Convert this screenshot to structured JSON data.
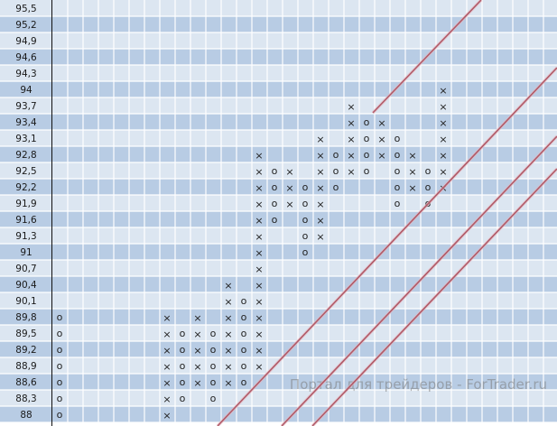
{
  "chart_data": {
    "type": "point-and-figure",
    "price_labels": [
      "95,5",
      "95,2",
      "94,9",
      "94,6",
      "94,3",
      "94",
      "93,7",
      "93,4",
      "93,1",
      "92,8",
      "92,5",
      "92,2",
      "91,9",
      "91,6",
      "91,3",
      "91",
      "90,7",
      "90,4",
      "90,1",
      "89,8",
      "89,5",
      "89,2",
      "88,9",
      "88,6",
      "88,3",
      "88"
    ],
    "box_size": 0.3,
    "columns": [
      {
        "col": 0,
        "mark": "O",
        "high": 89.8,
        "low": 88.0
      },
      {
        "col": 7,
        "mark": "X",
        "high": 89.8,
        "low": 88.0
      },
      {
        "col": 8,
        "mark": "O",
        "high": 89.5,
        "low": 88.3
      },
      {
        "col": 9,
        "mark": "X",
        "high": 89.8,
        "low": 88.6
      },
      {
        "col": 10,
        "mark": "O",
        "high": 89.5,
        "low": 88.3
      },
      {
        "col": 11,
        "mark": "X",
        "high": 90.4,
        "low": 88.6
      },
      {
        "col": 12,
        "mark": "O",
        "high": 90.1,
        "low": 88.6
      },
      {
        "col": 13,
        "mark": "X",
        "high": 92.8,
        "low": 88.9
      },
      {
        "col": 14,
        "mark": "O",
        "high": 92.5,
        "low": 91.6
      },
      {
        "col": 15,
        "mark": "X",
        "high": 92.5,
        "low": 91.9
      },
      {
        "col": 16,
        "mark": "O",
        "high": 92.2,
        "low": 91.0
      },
      {
        "col": 17,
        "mark": "X",
        "high": 93.1,
        "low": 91.3
      },
      {
        "col": 18,
        "mark": "O",
        "high": 92.8,
        "low": 92.2
      },
      {
        "col": 19,
        "mark": "X",
        "high": 93.7,
        "low": 92.5
      },
      {
        "col": 20,
        "mark": "O",
        "high": 93.4,
        "low": 92.5
      },
      {
        "col": 21,
        "mark": "X",
        "high": 93.4,
        "low": 92.8
      },
      {
        "col": 22,
        "mark": "O",
        "high": 93.1,
        "low": 91.9
      },
      {
        "col": 23,
        "mark": "X",
        "high": 92.8,
        "low": 92.2
      },
      {
        "col": 24,
        "mark": "O",
        "high": 92.5,
        "low": 91.9
      },
      {
        "col": 25,
        "mark": "X",
        "high": 94.0,
        "low": 92.2
      }
    ],
    "trendline_color": "#b05a68",
    "band_colors": {
      "light": "#dce6f1",
      "dark": "#b8cce4"
    },
    "watermark": "Портал для трейдеров - ForTrader.ru"
  }
}
